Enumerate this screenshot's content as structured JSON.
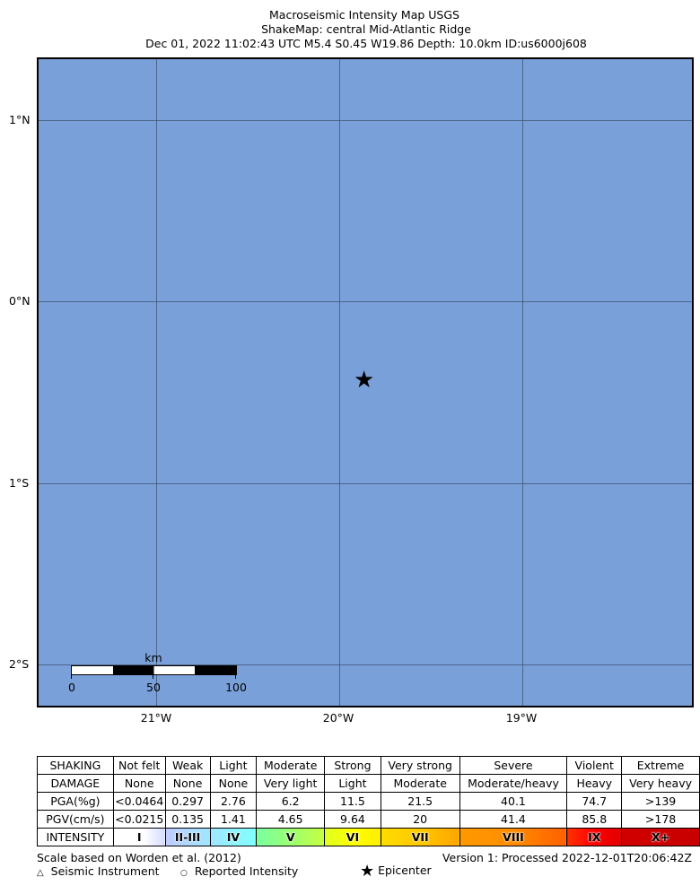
{
  "title": {
    "line1": "Macroseismic Intensity Map USGS",
    "line2": "ShakeMap: central Mid-Atlantic Ridge",
    "line3": "Dec 01, 2022 11:02:43 UTC M5.4 S0.45 W19.86 Depth: 10.0km ID:us6000j608"
  },
  "map": {
    "background_color": "#7aa0da",
    "lat_labels": [
      "1°N",
      "0°N",
      "1°S",
      "2°S"
    ],
    "lon_labels": [
      "21°W",
      "20°W",
      "19°W"
    ],
    "epicenter": {
      "lat": -0.45,
      "lon": -19.86,
      "icon": "star-icon"
    },
    "scalebar": {
      "unit": "km",
      "ticks": [
        "0",
        "50",
        "100"
      ]
    }
  },
  "legend_table": {
    "rows": [
      {
        "header": "SHAKING",
        "cells": [
          "Not felt",
          "Weak",
          "Light",
          "Moderate",
          "Strong",
          "Very strong",
          "Severe",
          "Violent",
          "Extreme"
        ]
      },
      {
        "header": "DAMAGE",
        "cells": [
          "None",
          "None",
          "None",
          "Very light",
          "Light",
          "Moderate",
          "Moderate/heavy",
          "Heavy",
          "Very heavy"
        ]
      },
      {
        "header": "PGA(%g)",
        "cells": [
          "<0.0464",
          "0.297",
          "2.76",
          "6.2",
          "11.5",
          "21.5",
          "40.1",
          "74.7",
          ">139"
        ]
      },
      {
        "header": "PGV(cm/s)",
        "cells": [
          "<0.0215",
          "0.135",
          "1.41",
          "4.65",
          "9.64",
          "20",
          "41.4",
          "85.8",
          ">178"
        ]
      },
      {
        "header": "INTENSITY",
        "cells": [
          "I",
          "II-III",
          "IV",
          "V",
          "VI",
          "VII",
          "VIII",
          "IX",
          "X+"
        ]
      }
    ],
    "intensity_colors": [
      "#ffffff",
      "#bfccff",
      "#80ffff",
      "#7aff93",
      "#ffff00",
      "#ffc800",
      "#ff9100",
      "#ff0000",
      "#c80000"
    ]
  },
  "footer": {
    "scale_note": "Scale based on Worden et al. (2012)",
    "version": "Version 1: Processed 2022-12-01T20:06:42Z",
    "legend_instrument": "Seismic Instrument",
    "legend_reported": "Reported Intensity",
    "legend_epicenter": "Epicenter"
  }
}
